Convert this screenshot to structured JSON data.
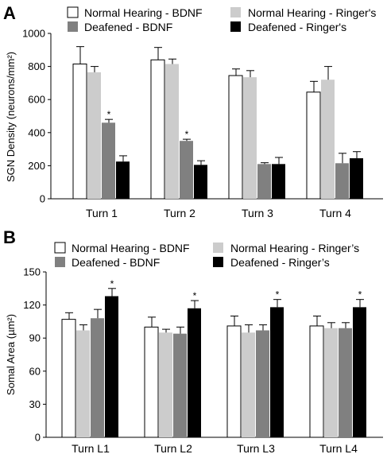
{
  "chart_data": [
    {
      "panel": "A",
      "type": "bar",
      "title": "",
      "xlabel": "",
      "ylabel": "SGN Density (neurons/mm²)",
      "ylim": [
        0,
        1000
      ],
      "yticks": [
        "0",
        "200",
        "400",
        "600",
        "800",
        "1000"
      ],
      "categories": [
        "Turn 1",
        "Turn 2",
        "Turn 3",
        "Turn 4"
      ],
      "series": [
        {
          "name": "Normal Hearing - BDNF",
          "color": "#ffffff",
          "values": [
            815,
            840,
            745,
            645
          ],
          "errors": [
            105,
            75,
            40,
            65
          ],
          "sig": [
            "",
            "",
            "",
            ""
          ]
        },
        {
          "name": "Normal Hearing - Ringer's",
          "color": "#cccccc",
          "values": [
            765,
            815,
            735,
            720
          ],
          "errors": [
            35,
            30,
            40,
            80
          ],
          "sig": [
            "",
            "",
            "",
            ""
          ]
        },
        {
          "name": "Deafened - BDNF",
          "color": "#808080",
          "values": [
            460,
            350,
            210,
            215
          ],
          "errors": [
            20,
            10,
            8,
            60
          ],
          "sig": [
            "*",
            "*",
            "",
            ""
          ]
        },
        {
          "name": "Deafened - Ringer's",
          "color": "#000000",
          "values": [
            225,
            205,
            210,
            245
          ],
          "errors": [
            35,
            25,
            40,
            40
          ],
          "sig": [
            "",
            "",
            "",
            ""
          ]
        }
      ],
      "legend": "top"
    },
    {
      "panel": "B",
      "type": "bar",
      "title": "",
      "xlabel": "",
      "ylabel": "Somal Area (µm²)",
      "ylim": [
        0,
        150
      ],
      "yticks": [
        "0",
        "30",
        "60",
        "90",
        "120",
        "150"
      ],
      "categories": [
        "Turn L1",
        "Turn L2",
        "Turn L3",
        "Turn L4"
      ],
      "series": [
        {
          "name": "Normal Hearing - BDNF",
          "color": "#ffffff",
          "values": [
            107,
            100,
            101,
            101
          ],
          "errors": [
            6,
            9,
            9,
            9
          ],
          "sig": [
            "",
            "",
            "",
            ""
          ]
        },
        {
          "name": "Normal Hearing - Ringer’s",
          "color": "#cccccc",
          "values": [
            97,
            95,
            95,
            99
          ],
          "errors": [
            5,
            3,
            7,
            5
          ],
          "sig": [
            "",
            "",
            "",
            ""
          ]
        },
        {
          "name": "Deafened - BDNF",
          "color": "#808080",
          "values": [
            108,
            94,
            97,
            99
          ],
          "errors": [
            8,
            6,
            5,
            5
          ],
          "sig": [
            "",
            "",
            "",
            ""
          ]
        },
        {
          "name": "Deafened - Ringer’s",
          "color": "#000000",
          "values": [
            128,
            117,
            118,
            118
          ],
          "errors": [
            7,
            7,
            7,
            7
          ],
          "sig": [
            "*",
            "*",
            "*",
            "*"
          ]
        }
      ],
      "legend": "top"
    }
  ]
}
